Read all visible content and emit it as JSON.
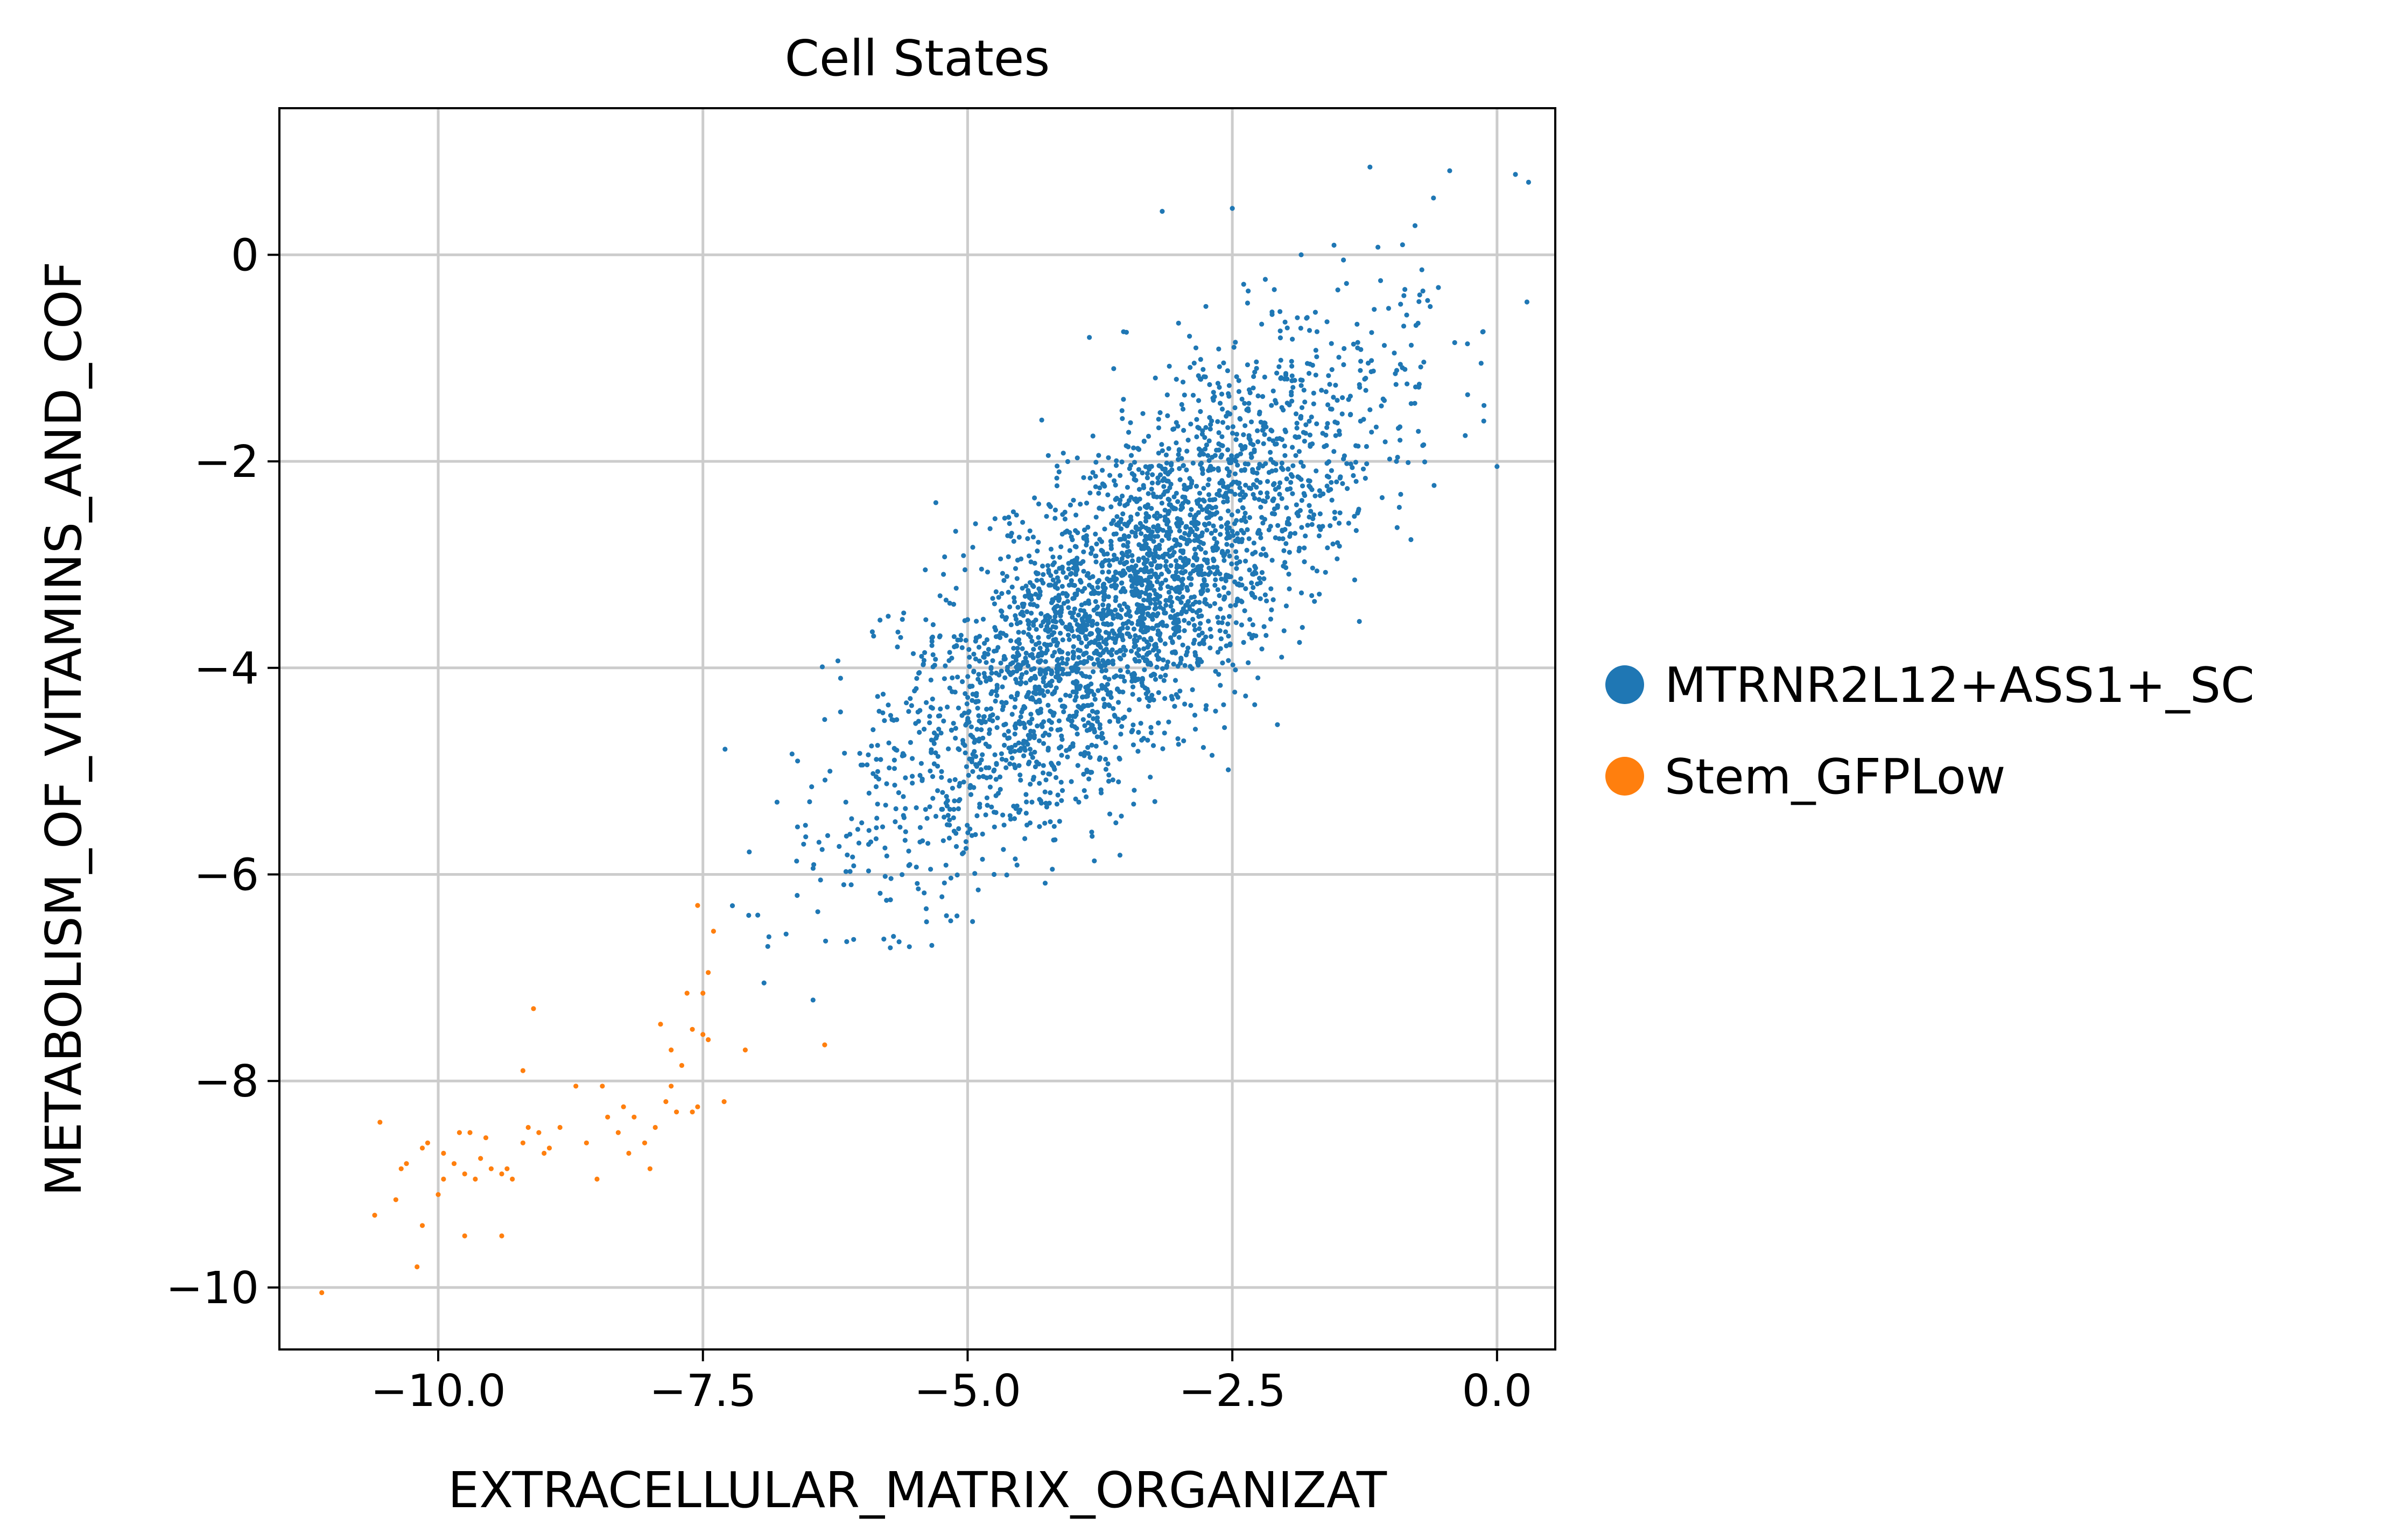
{
  "chart_data": {
    "type": "scatter",
    "title": "Cell States",
    "xlabel": "EXTRACELLULAR_MATRIX_ORGANIZAT",
    "ylabel": "METABOLISM_OF_VITAMINS_AND_COF",
    "xlim": [
      -11.5,
      0.55
    ],
    "ylim": [
      -10.6,
      1.42
    ],
    "xticks": [
      -10.0,
      -7.5,
      -5.0,
      -2.5,
      0.0
    ],
    "xtick_labels": [
      "−10.0",
      "−7.5",
      "−5.0",
      "−2.5",
      "0.0"
    ],
    "yticks": [
      0,
      -2,
      -4,
      -6,
      -8,
      -10
    ],
    "ytick_labels": [
      "0",
      "−2",
      "−4",
      "−6",
      "−8",
      "−10"
    ],
    "grid": true,
    "legend_position": "right",
    "series": [
      {
        "name": "MTRNR2L12+ASS1+_SC",
        "color": "#1f77b4",
        "cluster": {
          "count": 3200,
          "center": [
            -3.5,
            -3.35
          ],
          "spread_major": 1.55,
          "spread_minor": 0.55,
          "slope": 1.05
        },
        "points": [
          [
            -2.5,
            0.45
          ],
          [
            -1.2,
            0.85
          ],
          [
            -0.6,
            0.55
          ],
          [
            -0.15,
            -1.05
          ],
          [
            -0.4,
            -0.85
          ],
          [
            -0.3,
            -1.75
          ],
          [
            -0.0,
            -2.05
          ],
          [
            -1.3,
            -3.55
          ],
          [
            -2.35,
            -0.35
          ],
          [
            -2.75,
            -0.5
          ],
          [
            -3.5,
            -0.75
          ],
          [
            -5.3,
            -2.4
          ],
          [
            -5.75,
            -3.5
          ],
          [
            -6.35,
            -4.5
          ],
          [
            -6.3,
            -5.0
          ],
          [
            -6.15,
            -5.3
          ],
          [
            -6.0,
            -5.5
          ],
          [
            -6.1,
            -6.1
          ],
          [
            -5.55,
            -6.7
          ],
          [
            -5.2,
            -6.4
          ],
          [
            -4.9,
            -6.15
          ],
          [
            -4.55,
            -5.85
          ],
          [
            -4.2,
            -5.95
          ],
          [
            -6.8,
            -5.3
          ],
          [
            -5.7,
            -6.6
          ],
          [
            -4.75,
            -6.0
          ],
          [
            -5.05,
            -5.8
          ],
          [
            -3.3,
            -4.7
          ],
          [
            -2.75,
            -4.4
          ],
          [
            -2.35,
            -3.95
          ],
          [
            -1.75,
            -3.3
          ],
          [
            -1.55,
            -2.8
          ],
          [
            -0.85,
            -1.25
          ],
          [
            -1.1,
            -0.25
          ],
          [
            -1.45,
            -0.05
          ],
          [
            -1.85,
            0.0
          ],
          [
            -3.85,
            -0.8
          ],
          [
            -4.3,
            -1.6
          ],
          [
            -4.65,
            -2.55
          ],
          [
            -5.4,
            -3.05
          ],
          [
            -5.9,
            -3.65
          ],
          [
            -6.2,
            -4.1
          ],
          [
            -5.85,
            -4.75
          ],
          [
            -5.6,
            -5.45
          ],
          [
            -5.35,
            -5.95
          ],
          [
            -3.95,
            -5.3
          ],
          [
            -3.6,
            -5.5
          ],
          [
            -2.95,
            -4.35
          ],
          [
            -2.2,
            -3.6
          ],
          [
            -1.95,
            -2.7
          ],
          [
            -1.2,
            -1.5
          ],
          [
            -0.95,
            -2.0
          ],
          [
            -0.7,
            -0.35
          ],
          [
            -2.05,
            -0.55
          ]
        ]
      },
      {
        "name": "Stem_GFPLow",
        "color": "#ff7f0e",
        "points": [
          [
            -11.1,
            -10.05
          ],
          [
            -10.2,
            -9.8
          ],
          [
            -9.75,
            -9.5
          ],
          [
            -9.4,
            -9.5
          ],
          [
            -10.6,
            -9.3
          ],
          [
            -10.15,
            -9.4
          ],
          [
            -10.0,
            -9.1
          ],
          [
            -9.95,
            -8.95
          ],
          [
            -10.4,
            -9.15
          ],
          [
            -10.35,
            -8.85
          ],
          [
            -10.3,
            -8.8
          ],
          [
            -10.1,
            -8.6
          ],
          [
            -9.95,
            -8.7
          ],
          [
            -9.8,
            -8.5
          ],
          [
            -9.7,
            -8.5
          ],
          [
            -9.85,
            -8.8
          ],
          [
            -9.75,
            -8.9
          ],
          [
            -9.65,
            -8.95
          ],
          [
            -9.6,
            -8.75
          ],
          [
            -9.5,
            -8.85
          ],
          [
            -9.4,
            -8.9
          ],
          [
            -9.35,
            -8.85
          ],
          [
            -9.3,
            -8.95
          ],
          [
            -9.2,
            -8.6
          ],
          [
            -9.15,
            -8.45
          ],
          [
            -9.05,
            -8.5
          ],
          [
            -9.0,
            -8.7
          ],
          [
            -8.95,
            -8.65
          ],
          [
            -8.85,
            -8.45
          ],
          [
            -8.7,
            -8.05
          ],
          [
            -8.5,
            -8.95
          ],
          [
            -8.4,
            -8.35
          ],
          [
            -8.3,
            -8.5
          ],
          [
            -8.2,
            -8.7
          ],
          [
            -8.05,
            -8.6
          ],
          [
            -8.0,
            -8.85
          ],
          [
            -8.25,
            -8.25
          ],
          [
            -8.15,
            -8.35
          ],
          [
            -7.95,
            -8.45
          ],
          [
            -7.85,
            -8.2
          ],
          [
            -7.75,
            -8.3
          ],
          [
            -7.8,
            -8.05
          ],
          [
            -7.7,
            -7.85
          ],
          [
            -7.6,
            -8.3
          ],
          [
            -7.55,
            -8.25
          ],
          [
            -7.9,
            -7.45
          ],
          [
            -7.8,
            -7.7
          ],
          [
            -7.6,
            -7.5
          ],
          [
            -7.5,
            -7.55
          ],
          [
            -7.45,
            -7.6
          ],
          [
            -7.65,
            -7.15
          ],
          [
            -7.5,
            -7.15
          ],
          [
            -7.45,
            -6.95
          ],
          [
            -7.4,
            -6.55
          ],
          [
            -7.55,
            -6.3
          ],
          [
            -7.3,
            -8.2
          ],
          [
            -7.1,
            -7.7
          ],
          [
            -6.35,
            -7.65
          ],
          [
            -9.1,
            -7.3
          ],
          [
            -9.2,
            -7.9
          ],
          [
            -10.55,
            -8.4
          ],
          [
            -10.15,
            -8.65
          ],
          [
            -8.45,
            -8.05
          ],
          [
            -8.6,
            -8.6
          ],
          [
            -9.55,
            -8.55
          ]
        ]
      }
    ]
  }
}
